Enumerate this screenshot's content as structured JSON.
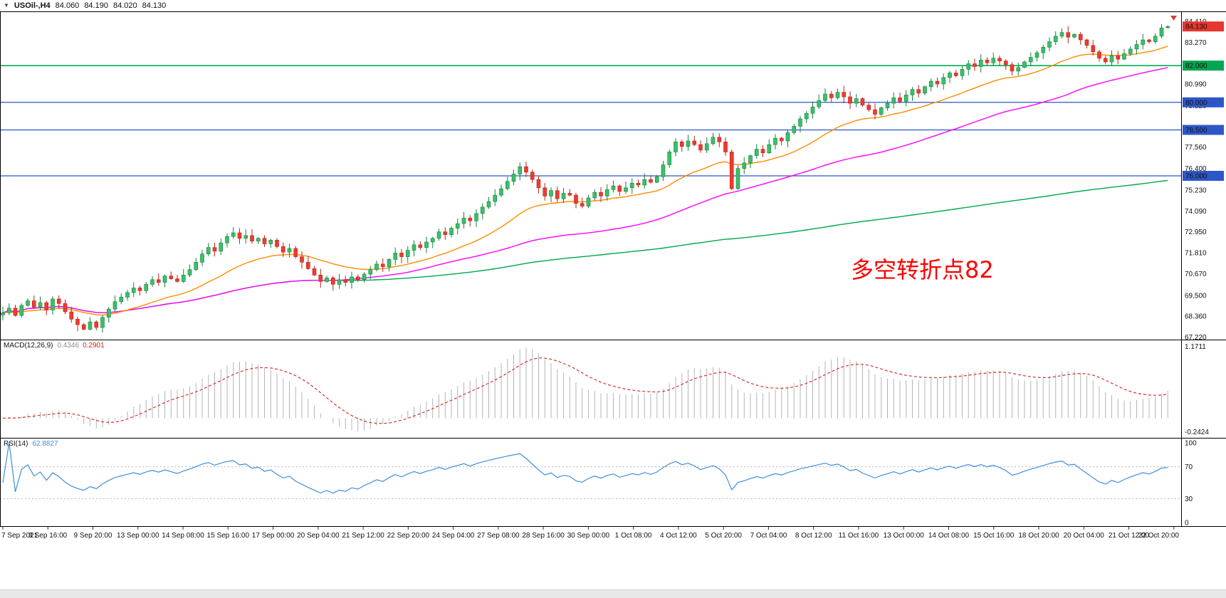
{
  "titlebar": {
    "marker": "▼",
    "symbol": "USOil-,H4",
    "open": "84.060",
    "high": "84.190",
    "low": "84.020",
    "close": "84.130"
  },
  "annotation": {
    "text": "多空转折点82",
    "color": "#ff0000"
  },
  "macd": {
    "name": "MACD(12,26,9)",
    "value_main": "0.4346",
    "value_signal": "0.2901"
  },
  "rsi": {
    "name": "RSI(14)",
    "value": "62.8827"
  },
  "chart_data": {
    "type": "candlestick",
    "title": "USOil- H4 candlestick chart with MACD(12,26,9) and RSI(14)",
    "timeframe": "H4",
    "last_bar": {
      "open": 84.06,
      "high": 84.19,
      "low": 84.02,
      "close": 84.13
    },
    "y_range": [
      67.05,
      84.95
    ],
    "y_ticks": [
      "84.410",
      "83.270",
      "80.990",
      "79.820",
      "77.560",
      "76.400",
      "75.230",
      "74.090",
      "72.950",
      "71.810",
      "70.670",
      "69.500",
      "68.360",
      "67.220"
    ],
    "y_tags": [
      {
        "text": "84.130",
        "bg": "#e8352e"
      },
      {
        "text": "82.000",
        "bg": "#00a651"
      },
      {
        "text": "80.000",
        "bg": "#2d56c8"
      },
      {
        "text": "78.500",
        "bg": "#2d56c8"
      },
      {
        "text": "76.000",
        "bg": "#2d56c8"
      }
    ],
    "hlines": [
      {
        "price": 82.0,
        "color": "#00b050",
        "width": 1.6
      },
      {
        "price": 80.0,
        "color": "#2d56c8",
        "width": 1.2
      },
      {
        "price": 78.5,
        "color": "#2d56c8",
        "width": 1.2
      },
      {
        "price": 76.0,
        "color": "#2d56c8",
        "width": 1.2
      }
    ],
    "x_ticks": [
      "7 Sep 2021",
      "8 Sep 16:00",
      "9 Sep 20:00",
      "13 Sep 00:00",
      "14 Sep 08:00",
      "15 Sep 16:00",
      "17 Sep 00:00",
      "20 Sep 04:00",
      "21 Sep 12:00",
      "22 Sep 20:00",
      "24 Sep 04:00",
      "27 Sep 08:00",
      "28 Sep 16:00",
      "30 Sep 00:00",
      "1 Oct 08:00",
      "4 Oct 12:00",
      "5 Oct 20:00",
      "7 Oct 04:00",
      "8 Oct 12:00",
      "11 Oct 16:00",
      "13 Oct 00:00",
      "14 Oct 08:00",
      "15 Oct 16:00",
      "18 Oct 20:00",
      "20 Oct 04:00",
      "21 Oct 12:00",
      "22 Oct 20:00"
    ],
    "closes": [
      68.55,
      68.8,
      68.4,
      68.95,
      69.2,
      68.85,
      69.1,
      68.7,
      69.3,
      69.05,
      68.6,
      68.2,
      67.9,
      67.65,
      68.05,
      67.75,
      68.3,
      68.75,
      69.15,
      69.4,
      69.65,
      69.9,
      69.75,
      70.1,
      70.35,
      70.2,
      70.55,
      70.4,
      70.25,
      70.6,
      70.9,
      71.3,
      71.75,
      72.1,
      71.9,
      72.35,
      72.7,
      72.9,
      72.6,
      72.75,
      72.45,
      72.6,
      72.3,
      72.5,
      72.15,
      71.85,
      72.05,
      71.6,
      71.3,
      70.95,
      70.6,
      70.25,
      70.45,
      70.1,
      70.35,
      70.2,
      70.5,
      70.35,
      70.65,
      70.9,
      71.2,
      71.05,
      71.45,
      71.8,
      71.6,
      71.95,
      72.25,
      72.1,
      72.4,
      72.6,
      72.95,
      72.8,
      73.15,
      73.4,
      73.7,
      73.55,
      73.95,
      74.3,
      74.6,
      74.95,
      75.3,
      75.7,
      76.1,
      76.5,
      76.2,
      75.8,
      75.35,
      74.9,
      75.2,
      74.75,
      75.05,
      74.95,
      74.5,
      74.35,
      74.8,
      75.1,
      74.9,
      75.25,
      75.45,
      75.15,
      75.35,
      75.6,
      75.5,
      75.8,
      75.65,
      75.95,
      76.6,
      77.3,
      77.85,
      77.6,
      77.9,
      77.7,
      77.4,
      77.75,
      78.1,
      77.85,
      77.3,
      75.3,
      76.4,
      76.7,
      77.1,
      77.45,
      77.25,
      77.7,
      78.05,
      77.9,
      78.35,
      78.7,
      79.1,
      79.4,
      79.75,
      80.1,
      80.45,
      80.25,
      80.55,
      80.3,
      79.95,
      80.2,
      79.85,
      79.6,
      79.35,
      79.7,
      79.95,
      80.25,
      80.05,
      80.4,
      80.7,
      80.5,
      80.85,
      81.15,
      81.0,
      81.35,
      81.6,
      81.45,
      81.8,
      82.1,
      81.95,
      82.3,
      82.15,
      82.4,
      82.25,
      82.05,
      81.7,
      81.9,
      82.2,
      82.45,
      82.7,
      83.0,
      83.3,
      83.6,
      83.8,
      83.55,
      83.7,
      83.4,
      83.1,
      82.75,
      82.4,
      82.2,
      82.55,
      82.35,
      82.65,
      82.9,
      83.15,
      83.4,
      83.3,
      83.6,
      84.05,
      84.13
    ],
    "up_color": "#3cbf6a",
    "up_border": "#15813c",
    "down_color": "#ef3b2d",
    "down_border": "#b3241c",
    "moving_averages": [
      {
        "kind": "expanding_sma",
        "color": "#00a651"
      },
      {
        "kind": "sma",
        "period": 55,
        "color": "#ff00ff"
      },
      {
        "kind": "ema",
        "period": 21,
        "color": "#ff8c00"
      }
    ],
    "macd": {
      "fast": 12,
      "slow": 26,
      "signal": 9,
      "histogram_color": "#b4b4b4",
      "signal_color": "#d32f2f",
      "scale_top": "1.1711",
      "scale_bottom": "-0.2424",
      "current_macd": 0.4346,
      "current_signal": 0.2901
    },
    "rsi": {
      "period": 14,
      "color": "#3e8ede",
      "levels": [
        70,
        30
      ],
      "scale": [
        "100",
        "70",
        "30",
        "0"
      ],
      "current": 62.8827
    }
  }
}
